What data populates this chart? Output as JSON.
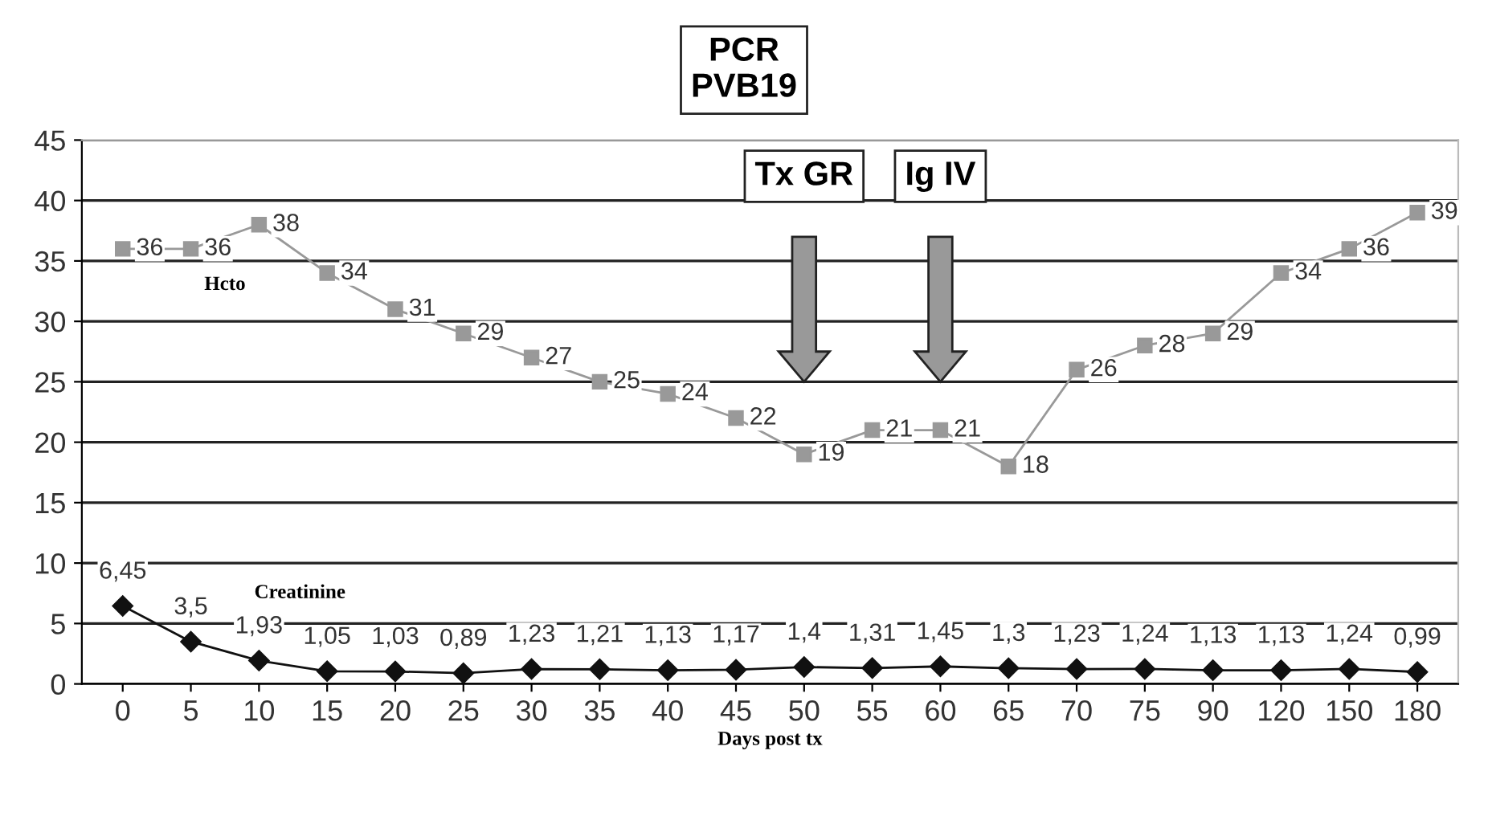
{
  "chart_data": {
    "type": "line",
    "title": "PCR\nPVB19",
    "xlabel": "Days post tx",
    "categories": [
      "0",
      "5",
      "10",
      "15",
      "20",
      "25",
      "30",
      "35",
      "40",
      "45",
      "50",
      "55",
      "60",
      "65",
      "70",
      "75",
      "90",
      "120",
      "150",
      "180"
    ],
    "series": [
      {
        "name": "Hcto",
        "color": "#999999",
        "marker": "square",
        "values": [
          36,
          36,
          38,
          34,
          31,
          29,
          27,
          25,
          24,
          22,
          19,
          21,
          21,
          18,
          26,
          28,
          29,
          34,
          36,
          39
        ],
        "value_labels": [
          "36",
          "36",
          "38",
          "34",
          "31",
          "29",
          "27",
          "25",
          "24",
          "22",
          "19",
          "21",
          "21",
          "18",
          "26",
          "28",
          "29",
          "34",
          "36",
          "39"
        ]
      },
      {
        "name": "Creatinine",
        "color": "#111111",
        "marker": "diamond",
        "values": [
          6.45,
          3.5,
          1.93,
          1.05,
          1.03,
          0.89,
          1.23,
          1.21,
          1.13,
          1.17,
          1.4,
          1.31,
          1.45,
          1.3,
          1.23,
          1.24,
          1.13,
          1.13,
          1.24,
          0.99
        ],
        "value_labels": [
          "6,45",
          "3,5",
          "1,93",
          "1,05",
          "1,03",
          "0,89",
          "1,23",
          "1,21",
          "1,13",
          "1,17",
          "1,4",
          "1,31",
          "1,45",
          "1,3",
          "1,23",
          "1,24",
          "1,13",
          "1,13",
          "1,24",
          "0,99"
        ]
      }
    ],
    "ylim": [
      0,
      45
    ],
    "yticks": [
      0,
      5,
      10,
      15,
      20,
      25,
      30,
      35,
      40,
      45
    ],
    "grid": "y",
    "annotations": [
      "Tx GR",
      "Ig IV"
    ]
  }
}
